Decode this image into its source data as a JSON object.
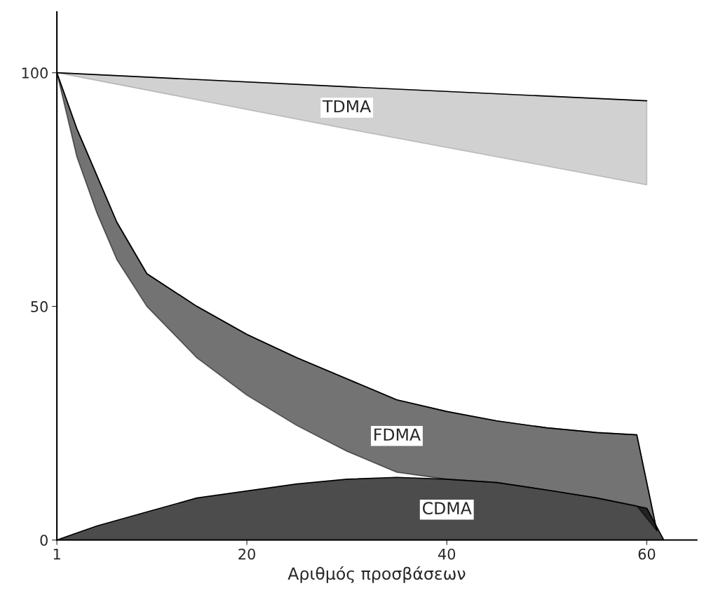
{
  "chart_data": {
    "type": "line",
    "xlabel": "Αριθμός προσβάσεων",
    "xlim": [
      1,
      65
    ],
    "ylim": [
      0,
      113
    ],
    "xticks": [
      1,
      20,
      40,
      60
    ],
    "yticks": [
      0,
      50,
      100
    ],
    "grid": false,
    "legend": false,
    "series": [
      {
        "name": "TDMA",
        "color": "#000000",
        "x": [
          1,
          30,
          60
        ],
        "values": [
          100,
          97,
          94
        ],
        "upper": [
          100,
          97,
          94
        ],
        "lower": [
          100,
          88,
          76
        ]
      },
      {
        "name": "FDMA",
        "color": "#000000",
        "x": [
          1,
          3,
          5,
          7,
          10,
          15,
          20,
          25,
          30,
          35,
          40,
          45,
          50,
          55,
          59,
          61
        ],
        "values": [
          100,
          88,
          78,
          68,
          57,
          50,
          44,
          39,
          34.5,
          30,
          27.5,
          25.5,
          24,
          23,
          22.5,
          2
        ],
        "upper": [
          100,
          88,
          78,
          68,
          57,
          50,
          44,
          39,
          34.5,
          30,
          27.5,
          25.5,
          24,
          23,
          22.5,
          2
        ],
        "lower": [
          100,
          82,
          70,
          60,
          50,
          39,
          31,
          24.5,
          19,
          14.5,
          13,
          12.3,
          10.7,
          9,
          7.3,
          2
        ]
      },
      {
        "name": "CDMA",
        "type": "area",
        "color": "#000000",
        "x": [
          1,
          5,
          10,
          15,
          20,
          25,
          30,
          35,
          40,
          45,
          50,
          55,
          60,
          61.7
        ],
        "values": [
          0,
          3,
          6,
          9,
          10.5,
          12,
          13,
          13.4,
          13,
          12.3,
          10.7,
          9,
          6.8,
          0
        ]
      }
    ]
  }
}
